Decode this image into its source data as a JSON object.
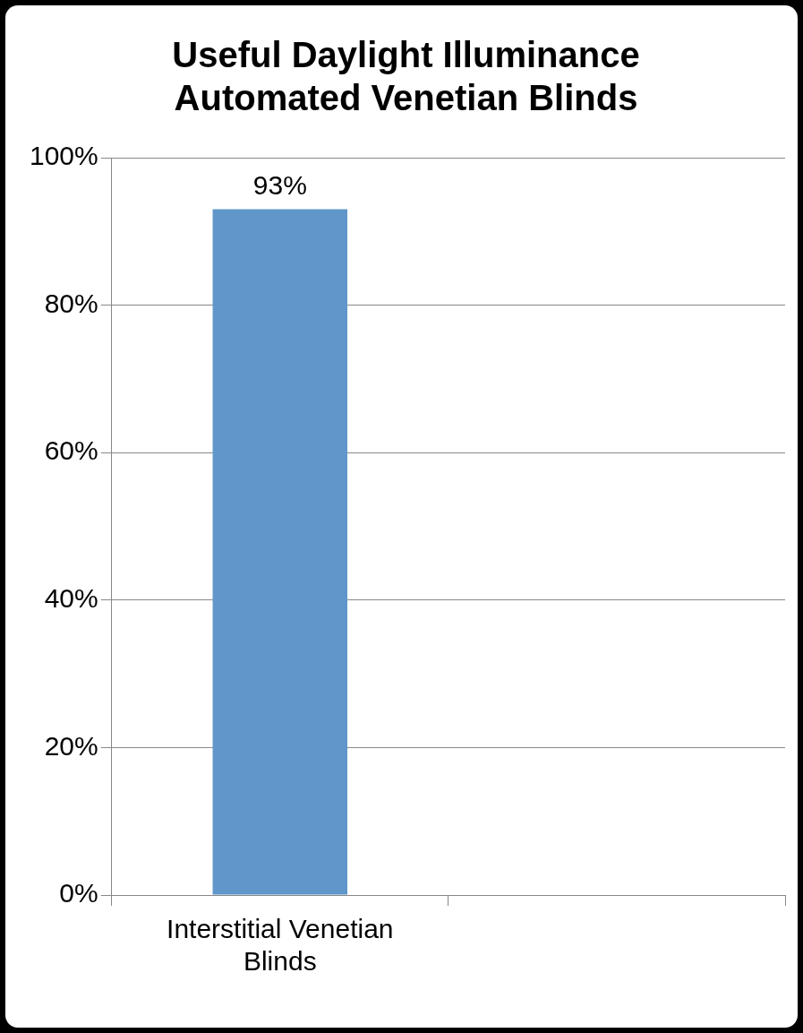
{
  "chart_data": {
    "type": "bar",
    "title": "Useful Daylight Illuminance\nAutomated Venetian Blinds",
    "categories": [
      "Interstitial Venetian Blinds",
      null
    ],
    "values": [
      93,
      null
    ],
    "color": "#6096c9",
    "value_labels": [
      "93%",
      null
    ],
    "ylim": [
      0,
      100
    ],
    "yticks": [
      {
        "value": 0,
        "label": "0%"
      },
      {
        "value": 20,
        "label": "20%"
      },
      {
        "value": 40,
        "label": "40%"
      },
      {
        "value": 60,
        "label": "60%"
      },
      {
        "value": 80,
        "label": "80%"
      },
      {
        "value": 100,
        "label": "100%"
      }
    ],
    "grid": "y",
    "legend": false
  }
}
